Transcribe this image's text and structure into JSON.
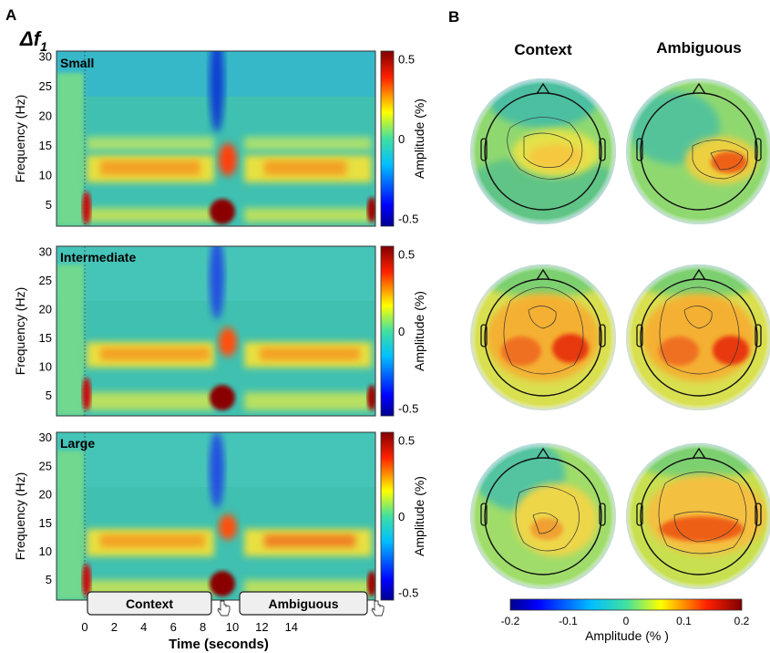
{
  "figure": {
    "panel_a_letter": "A",
    "panel_b_letter": "B",
    "delta_symbol": "Δf",
    "delta_sub": "1"
  },
  "panel_a": {
    "rows": [
      {
        "name": "Small"
      },
      {
        "name": "Intermediate"
      },
      {
        "name": "Large"
      }
    ],
    "ylabel": "Frequency (Hz)",
    "yticks": [
      "30",
      "25",
      "20",
      "15",
      "10",
      "5"
    ],
    "colorbar_label": "Amplitude  (%)",
    "colorbar_ticks": [
      "0.5",
      "0",
      "-0.5"
    ],
    "xlabel": "Time (seconds)",
    "xticks": [
      "0",
      "2",
      "4",
      "6",
      "8",
      "10",
      "12",
      "14"
    ],
    "context_label": "Context",
    "ambiguous_label": "Ambiguous"
  },
  "panel_b": {
    "col_titles": [
      "Context",
      "Ambiguous"
    ],
    "colorbar_ticks": [
      "-0.2",
      "-0.1",
      "0",
      "0.1",
      "0.2"
    ],
    "colorbar_label": "Amplitude  (% )"
  },
  "colors": {
    "jet": [
      "#00008f",
      "#0000ff",
      "#0080ff",
      "#00ffff",
      "#80ff80",
      "#ffff00",
      "#ff8000",
      "#ff0000",
      "#800000"
    ],
    "green_bg": "#4fc88a",
    "teal_bg": "#3fbbb0"
  }
}
